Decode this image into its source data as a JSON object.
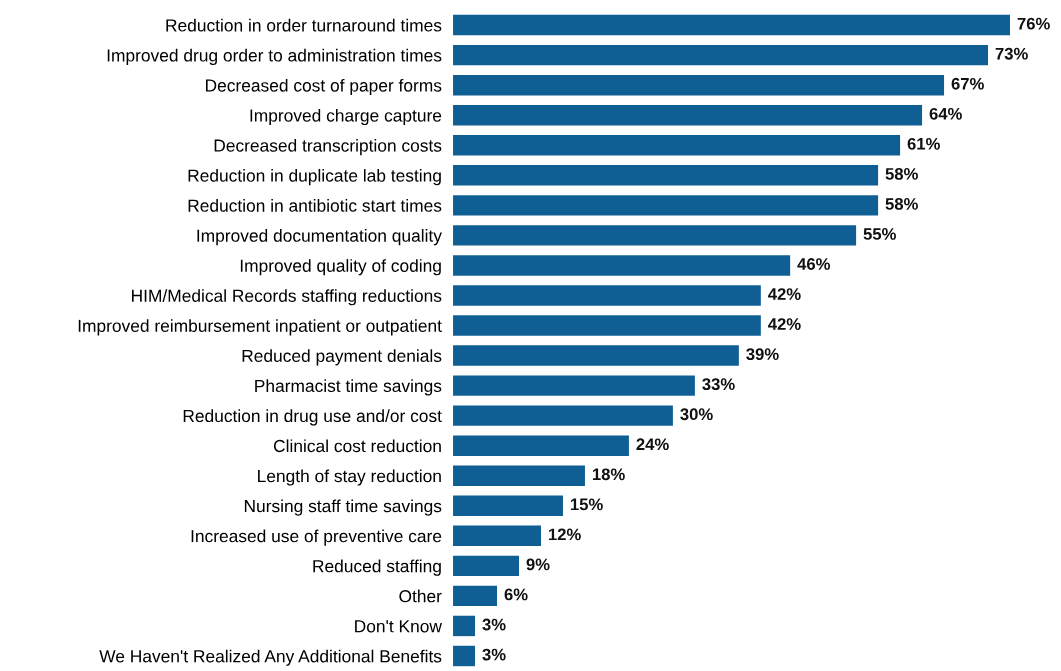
{
  "chart_data": {
    "type": "bar",
    "orientation": "horizontal",
    "color": "#0f5f94",
    "categories": [
      "Reduction in order turnaround times",
      "Improved drug order to administration times",
      "Decreased cost of paper forms",
      "Improved charge capture",
      "Decreased transcription costs",
      "Reduction in duplicate lab testing",
      "Reduction in antibiotic start times",
      "Improved documentation quality",
      "Improved quality of coding",
      "HIM/Medical Records staffing reductions",
      "Improved reimbursement inpatient or outpatient",
      "Reduced payment denials",
      "Pharmacist time savings",
      "Reduction in drug use and/or cost",
      "Clinical cost reduction",
      "Length of stay reduction",
      "Nursing staff time savings",
      "Increased use of preventive care",
      "Reduced staffing",
      "Other",
      "Don't Know",
      "We Haven't Realized Any Additional Benefits"
    ],
    "values": [
      76,
      73,
      67,
      64,
      61,
      58,
      58,
      55,
      46,
      42,
      42,
      39,
      33,
      30,
      24,
      18,
      15,
      12,
      9,
      6,
      3,
      3
    ],
    "value_labels": [
      "76%",
      "73%",
      "67%",
      "64%",
      "61%",
      "58%",
      "58%",
      "55%",
      "46%",
      "42%",
      "42%",
      "39%",
      "33%",
      "30%",
      "24%",
      "18%",
      "15%",
      "12%",
      "9%",
      "6%",
      "3%",
      "3%"
    ],
    "grid": false,
    "legend": false
  }
}
